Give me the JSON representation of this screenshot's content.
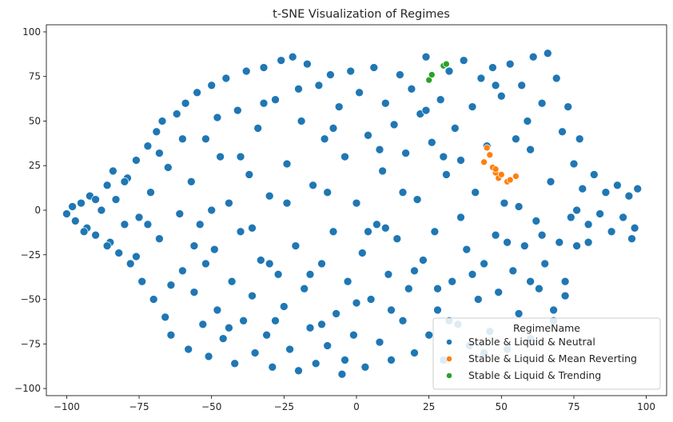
{
  "chart_data": {
    "type": "scatter",
    "title": "t-SNE Visualization of Regimes",
    "xlabel": "",
    "ylabel": "",
    "xlim": [
      -107,
      107
    ],
    "ylim": [
      -104,
      104
    ],
    "xticks": [
      -100,
      -75,
      -50,
      -25,
      0,
      25,
      50,
      75,
      100
    ],
    "yticks": [
      -100,
      -75,
      -50,
      -25,
      0,
      25,
      50,
      75,
      100
    ],
    "grid": false,
    "legend": {
      "title": "RegimeName",
      "placement": "lower right",
      "entries": [
        {
          "label": "Stable & Liquid & Neutral",
          "color": "#1f77b4"
        },
        {
          "label": "Stable & Liquid & Mean Reverting",
          "color": "#ff7f0e"
        },
        {
          "label": "Stable & Liquid & Trending",
          "color": "#2ca02c"
        }
      ]
    },
    "series": [
      {
        "name": "Stable & Liquid & Neutral",
        "color": "#1f77b4",
        "points": [
          [
            -100,
            -2
          ],
          [
            -98,
            2
          ],
          [
            -97,
            -6
          ],
          [
            -95,
            4
          ],
          [
            -93,
            -10
          ],
          [
            -92,
            8
          ],
          [
            -90,
            -14
          ],
          [
            -88,
            0
          ],
          [
            -86,
            14
          ],
          [
            -85,
            -18
          ],
          [
            -84,
            22
          ],
          [
            -83,
            6
          ],
          [
            -82,
            -24
          ],
          [
            -80,
            -8
          ],
          [
            -79,
            18
          ],
          [
            -78,
            -30
          ],
          [
            -76,
            28
          ],
          [
            -75,
            -4
          ],
          [
            -74,
            -40
          ],
          [
            -72,
            36
          ],
          [
            -71,
            10
          ],
          [
            -70,
            -50
          ],
          [
            -69,
            44
          ],
          [
            -68,
            -16
          ],
          [
            -67,
            50
          ],
          [
            -66,
            -60
          ],
          [
            -65,
            24
          ],
          [
            -64,
            -70
          ],
          [
            -62,
            54
          ],
          [
            -61,
            -2
          ],
          [
            -60,
            -34
          ],
          [
            -59,
            60
          ],
          [
            -58,
            -78
          ],
          [
            -57,
            16
          ],
          [
            -56,
            -46
          ],
          [
            -55,
            66
          ],
          [
            -54,
            -8
          ],
          [
            -53,
            -64
          ],
          [
            -52,
            40
          ],
          [
            -51,
            -82
          ],
          [
            -50,
            70
          ],
          [
            -49,
            -22
          ],
          [
            -48,
            -56
          ],
          [
            -47,
            30
          ],
          [
            -46,
            -72
          ],
          [
            -45,
            74
          ],
          [
            -44,
            4
          ],
          [
            -43,
            -40
          ],
          [
            -42,
            -86
          ],
          [
            -41,
            56
          ],
          [
            -40,
            -12
          ],
          [
            -39,
            -62
          ],
          [
            -38,
            78
          ],
          [
            -37,
            20
          ],
          [
            -36,
            -48
          ],
          [
            -35,
            -80
          ],
          [
            -34,
            46
          ],
          [
            -33,
            -28
          ],
          [
            -32,
            80
          ],
          [
            -31,
            -70
          ],
          [
            -30,
            8
          ],
          [
            -29,
            -88
          ],
          [
            -28,
            62
          ],
          [
            -27,
            -36
          ],
          [
            -26,
            84
          ],
          [
            -25,
            -54
          ],
          [
            -24,
            26
          ],
          [
            -23,
            -78
          ],
          [
            -22,
            86
          ],
          [
            -21,
            -20
          ],
          [
            -20,
            -90
          ],
          [
            -19,
            50
          ],
          [
            -18,
            -44
          ],
          [
            -17,
            82
          ],
          [
            -16,
            -66
          ],
          [
            -15,
            14
          ],
          [
            -14,
            -86
          ],
          [
            -13,
            70
          ],
          [
            -12,
            -30
          ],
          [
            -11,
            40
          ],
          [
            -10,
            -76
          ],
          [
            -9,
            76
          ],
          [
            -8,
            -12
          ],
          [
            -7,
            -58
          ],
          [
            -6,
            58
          ],
          [
            -5,
            -92
          ],
          [
            -4,
            30
          ],
          [
            -3,
            -40
          ],
          [
            -2,
            78
          ],
          [
            -1,
            -70
          ],
          [
            0,
            4
          ],
          [
            1,
            66
          ],
          [
            2,
            -24
          ],
          [
            3,
            -88
          ],
          [
            4,
            42
          ],
          [
            5,
            -50
          ],
          [
            6,
            80
          ],
          [
            7,
            -8
          ],
          [
            8,
            -74
          ],
          [
            9,
            22
          ],
          [
            10,
            60
          ],
          [
            11,
            -36
          ],
          [
            12,
            -84
          ],
          [
            13,
            48
          ],
          [
            14,
            -16
          ],
          [
            15,
            76
          ],
          [
            16,
            -62
          ],
          [
            17,
            32
          ],
          [
            18,
            -44
          ],
          [
            19,
            68
          ],
          [
            20,
            -80
          ],
          [
            21,
            6
          ],
          [
            22,
            54
          ],
          [
            23,
            -28
          ],
          [
            24,
            86
          ],
          [
            25,
            -70
          ],
          [
            26,
            38
          ],
          [
            27,
            -12
          ],
          [
            28,
            -56
          ],
          [
            29,
            62
          ],
          [
            30,
            -84
          ],
          [
            31,
            20
          ],
          [
            32,
            78
          ],
          [
            33,
            -40
          ],
          [
            34,
            46
          ],
          [
            35,
            -64
          ],
          [
            36,
            -4
          ],
          [
            37,
            84
          ],
          [
            38,
            -22
          ],
          [
            39,
            -76
          ],
          [
            40,
            58
          ],
          [
            41,
            10
          ],
          [
            42,
            -50
          ],
          [
            43,
            74
          ],
          [
            44,
            -30
          ],
          [
            45,
            36
          ],
          [
            46,
            -68
          ],
          [
            47,
            80
          ],
          [
            48,
            -14
          ],
          [
            49,
            -46
          ],
          [
            50,
            64
          ],
          [
            51,
            4
          ],
          [
            52,
            -78
          ],
          [
            53,
            82
          ],
          [
            54,
            -34
          ],
          [
            55,
            40
          ],
          [
            56,
            -58
          ],
          [
            57,
            70
          ],
          [
            58,
            -20
          ],
          [
            59,
            50
          ],
          [
            60,
            -72
          ],
          [
            61,
            86
          ],
          [
            62,
            -6
          ],
          [
            63,
            -44
          ],
          [
            64,
            60
          ],
          [
            65,
            -30
          ],
          [
            66,
            88
          ],
          [
            67,
            16
          ],
          [
            68,
            -56
          ],
          [
            69,
            74
          ],
          [
            70,
            -18
          ],
          [
            71,
            44
          ],
          [
            72,
            -40
          ],
          [
            73,
            58
          ],
          [
            74,
            -4
          ],
          [
            75,
            26
          ],
          [
            76,
            -20
          ],
          [
            77,
            40
          ],
          [
            78,
            12
          ],
          [
            80,
            -8
          ],
          [
            82,
            20
          ],
          [
            84,
            -2
          ],
          [
            86,
            10
          ],
          [
            88,
            -12
          ],
          [
            90,
            14
          ],
          [
            92,
            -4
          ],
          [
            94,
            8
          ],
          [
            95,
            -16
          ],
          [
            96,
            -10
          ],
          [
            97,
            12
          ],
          [
            -94,
            -12
          ],
          [
            -90,
            6
          ],
          [
            -86,
            -20
          ],
          [
            -80,
            16
          ],
          [
            -76,
            -26
          ],
          [
            -72,
            -8
          ],
          [
            -68,
            32
          ],
          [
            -64,
            -42
          ],
          [
            -60,
            40
          ],
          [
            -56,
            -20
          ],
          [
            -52,
            -30
          ],
          [
            -48,
            52
          ],
          [
            -44,
            -66
          ],
          [
            -40,
            30
          ],
          [
            -36,
            -10
          ],
          [
            -32,
            60
          ],
          [
            -28,
            -62
          ],
          [
            -24,
            4
          ],
          [
            -20,
            68
          ],
          [
            -16,
            -36
          ],
          [
            -12,
            -64
          ],
          [
            -8,
            46
          ],
          [
            -4,
            -84
          ],
          [
            0,
            -52
          ],
          [
            4,
            -12
          ],
          [
            8,
            34
          ],
          [
            12,
            -56
          ],
          [
            16,
            10
          ],
          [
            20,
            -34
          ],
          [
            24,
            56
          ],
          [
            28,
            -44
          ],
          [
            32,
            -62
          ],
          [
            36,
            28
          ],
          [
            40,
            -36
          ],
          [
            44,
            -80
          ],
          [
            48,
            70
          ],
          [
            52,
            -18
          ],
          [
            56,
            2
          ],
          [
            60,
            34
          ],
          [
            64,
            -14
          ],
          [
            68,
            -62
          ],
          [
            72,
            -48
          ],
          [
            76,
            0
          ],
          [
            80,
            -18
          ],
          [
            60,
            -40
          ],
          [
            -30,
            -30
          ],
          [
            -10,
            10
          ],
          [
            10,
            -10
          ],
          [
            30,
            30
          ],
          [
            -50,
            0
          ]
        ]
      },
      {
        "name": "Stable & Liquid & Mean Reverting",
        "color": "#ff7f0e",
        "points": [
          [
            45,
            35
          ],
          [
            46,
            31
          ],
          [
            44,
            27
          ],
          [
            47,
            24
          ],
          [
            48,
            21
          ],
          [
            49,
            18
          ],
          [
            50,
            20
          ],
          [
            52,
            16
          ],
          [
            53,
            17
          ],
          [
            55,
            19
          ],
          [
            48,
            23
          ]
        ]
      },
      {
        "name": "Stable & Liquid & Trending",
        "color": "#2ca02c",
        "points": [
          [
            25,
            73
          ],
          [
            26,
            76
          ],
          [
            30,
            81
          ],
          [
            31,
            82
          ]
        ]
      }
    ]
  }
}
